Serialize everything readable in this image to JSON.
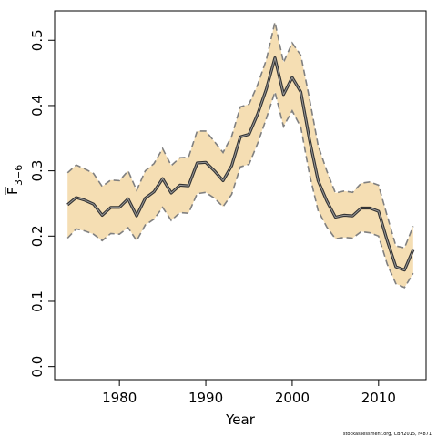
{
  "chart_data": {
    "type": "line",
    "xlabel": "Year",
    "ylabel": "F",
    "ylabel_sub": "3−6",
    "xlim": [
      1972.5,
      2015.5
    ],
    "ylim": [
      -0.02,
      0.545
    ],
    "x_ticks": [
      1980,
      1990,
      2000,
      2010
    ],
    "y_ticks": [
      0.0,
      0.1,
      0.2,
      0.3,
      0.4,
      0.5
    ],
    "y_tick_labels": [
      "0.0",
      "0.1",
      "0.2",
      "0.3",
      "0.4",
      "0.5"
    ],
    "x_tick_labels": [
      "1980",
      "1990",
      "2000",
      "2010"
    ],
    "grid": false,
    "x": [
      1974,
      1975,
      1976,
      1977,
      1978,
      1979,
      1980,
      1981,
      1982,
      1983,
      1984,
      1985,
      1986,
      1987,
      1988,
      1989,
      1990,
      1991,
      1992,
      1993,
      1994,
      1995,
      1996,
      1997,
      1998,
      1999,
      2000,
      2001,
      2002,
      2003,
      2004,
      2005,
      2006,
      2007,
      2008,
      2009,
      2010,
      2011,
      2012,
      2013,
      2014
    ],
    "series": [
      {
        "estimate": [
          0.248,
          0.259,
          0.255,
          0.249,
          0.232,
          0.244,
          0.244,
          0.257,
          0.231,
          0.258,
          0.268,
          0.288,
          0.266,
          0.278,
          0.277,
          0.312,
          0.313,
          0.3,
          0.285,
          0.308,
          0.352,
          0.356,
          0.387,
          0.425,
          0.473,
          0.417,
          0.443,
          0.421,
          0.348,
          0.285,
          0.254,
          0.229,
          0.232,
          0.231,
          0.243,
          0.243,
          0.238,
          0.193,
          0.153,
          0.148,
          0.179
        ],
        "upper": [
          0.297,
          0.309,
          0.303,
          0.296,
          0.276,
          0.286,
          0.285,
          0.3,
          0.27,
          0.3,
          0.311,
          0.334,
          0.308,
          0.32,
          0.321,
          0.361,
          0.361,
          0.345,
          0.328,
          0.353,
          0.398,
          0.402,
          0.432,
          0.47,
          0.528,
          0.466,
          0.496,
          0.477,
          0.411,
          0.339,
          0.3,
          0.266,
          0.269,
          0.267,
          0.281,
          0.283,
          0.278,
          0.231,
          0.185,
          0.182,
          0.215
        ],
        "lower": [
          0.197,
          0.211,
          0.208,
          0.203,
          0.193,
          0.204,
          0.203,
          0.213,
          0.193,
          0.217,
          0.226,
          0.244,
          0.224,
          0.236,
          0.235,
          0.265,
          0.267,
          0.258,
          0.245,
          0.264,
          0.306,
          0.31,
          0.342,
          0.38,
          0.421,
          0.368,
          0.392,
          0.367,
          0.295,
          0.239,
          0.214,
          0.196,
          0.198,
          0.197,
          0.207,
          0.205,
          0.2,
          0.157,
          0.127,
          0.121,
          0.143
        ]
      }
    ],
    "colors": {
      "band": "#f5deb3",
      "band_edge": "#808080",
      "line_outer": "#333333",
      "line_inner": "#999999"
    }
  },
  "footer": "stockassessment.org, CBH2015, r4871"
}
